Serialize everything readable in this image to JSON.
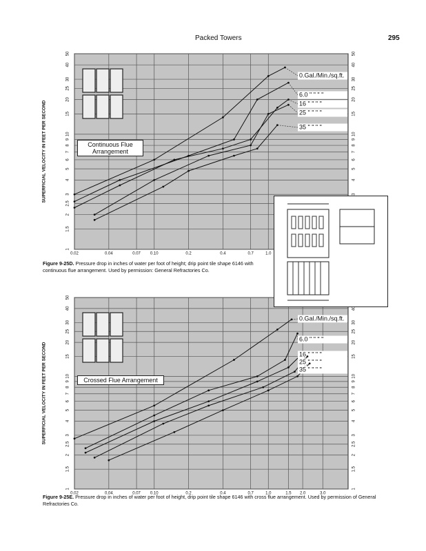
{
  "header": {
    "title": "Packed Towers",
    "page": "295"
  },
  "captions": [
    {
      "label": "Figure 9-25D.",
      "text": "Pressure drop in inches of water per foot of height; drip point tile shape 6146 with continuous flue arrangement. Used by permission: General Refractories Co."
    },
    {
      "label": "Figure 9-25E.",
      "text": "Pressure drop in inches of water per foot of height, drip point tile shape 6146 with cross flue arrangement. Used by permission of General Refractories Co."
    }
  ],
  "chart_data": [
    {
      "type": "line",
      "y_label": "SUPERFICIAL VELOCITY IN FEET PER SECOND",
      "annotation": "Continuous Flue Arrangement",
      "log_x": true,
      "log_y": true,
      "grid": true,
      "xlim": [
        0.02,
        5
      ],
      "ylim": [
        1,
        50
      ],
      "xticks": [
        0.02,
        0.04,
        0.07,
        {
          "value": 0.1,
          "label": "0.10"
        },
        0.2,
        0.4,
        0.7,
        {
          "value": 1,
          "label": "1.0"
        }
      ],
      "yticks": [
        1,
        1.5,
        2,
        2.5,
        3,
        4,
        5,
        6,
        7,
        8,
        9,
        10,
        15,
        20,
        25,
        30,
        40,
        50
      ],
      "series": [
        {
          "name": "0.Gal./Min./sq.ft.",
          "color": "#111111",
          "x": [
            0.02,
            0.1,
            0.4,
            1.0,
            1.4
          ],
          "values": [
            3,
            6,
            14,
            32,
            38
          ]
        },
        {
          "name": "6.0 \" \" \" \"",
          "color": "#111111",
          "x": [
            0.02,
            0.05,
            0.2,
            0.5,
            0.8,
            1.5
          ],
          "values": [
            2.6,
            4,
            6.5,
            9,
            20,
            28
          ]
        },
        {
          "name": "16 \" \" \" \"",
          "color": "#111111",
          "x": [
            0.02,
            0.05,
            0.15,
            0.4,
            0.7,
            1.2,
            1.5
          ],
          "values": [
            2.3,
            3.6,
            6,
            7.5,
            9,
            17,
            20
          ]
        },
        {
          "name": "25 \" \" \" \"",
          "color": "#111111",
          "x": [
            0.03,
            0.1,
            0.3,
            0.7,
            1.0,
            1.5
          ],
          "values": [
            2.0,
            4.0,
            6.5,
            8,
            15,
            18
          ]
        },
        {
          "name": "35 \" \" \" \"",
          "color": "#111111",
          "x": [
            0.03,
            0.12,
            0.2,
            0.5,
            0.8,
            1.2
          ],
          "values": [
            1.8,
            3.5,
            4.8,
            6.5,
            7.5,
            12
          ]
        }
      ]
    },
    {
      "type": "line",
      "y_label": "SUPERFICIAL VELOCITY IN FEET PER SECOND",
      "annotation": "Crossed Flue Arrangement",
      "log_x": true,
      "log_y": true,
      "grid": true,
      "xlim": [
        0.02,
        5
      ],
      "ylim": [
        1,
        50
      ],
      "xticks": [
        0.02,
        0.04,
        0.07,
        {
          "value": 0.1,
          "label": "0.10"
        },
        0.2,
        0.4,
        0.7,
        {
          "value": 1,
          "label": "1.0"
        },
        1.5,
        {
          "value": 2,
          "label": "2.0"
        },
        {
          "value": 3,
          "label": "3.0"
        }
      ],
      "yticks": [
        1,
        1.5,
        2,
        2.5,
        3,
        4,
        5,
        6,
        7,
        8,
        9,
        10,
        15,
        20,
        25,
        30,
        40,
        50
      ],
      "series": [
        {
          "name": "0.Gal./Min./sq.ft.",
          "color": "#111111",
          "x": [
            0.02,
            0.1,
            0.5,
            1.2,
            1.6
          ],
          "values": [
            2.8,
            5.5,
            14,
            26,
            32
          ]
        },
        {
          "name": "6.0 \" \" \" \"",
          "color": "#111111",
          "x": [
            0.025,
            0.1,
            0.3,
            0.8,
            1.4,
            1.8
          ],
          "values": [
            2.3,
            4.5,
            7.5,
            10,
            14,
            24
          ]
        },
        {
          "name": "16 \" \" \" \"",
          "color": "#111111",
          "x": [
            0.025,
            0.1,
            0.3,
            0.8,
            1.5,
            2.0
          ],
          "values": [
            2.1,
            4,
            6,
            9,
            12,
            16
          ]
        },
        {
          "name": "25 \" \" \" \"",
          "color": "#111111",
          "x": [
            0.03,
            0.12,
            0.3,
            0.9,
            1.7,
            2.2
          ],
          "values": [
            1.9,
            3.8,
            5.5,
            8,
            11,
            15
          ]
        },
        {
          "name": "35 \" \" \" \"",
          "color": "#111111",
          "x": [
            0.04,
            0.15,
            0.4,
            1.0,
            1.8,
            2.3
          ],
          "values": [
            1.8,
            3.2,
            5,
            7.5,
            10,
            13
          ]
        }
      ]
    }
  ]
}
